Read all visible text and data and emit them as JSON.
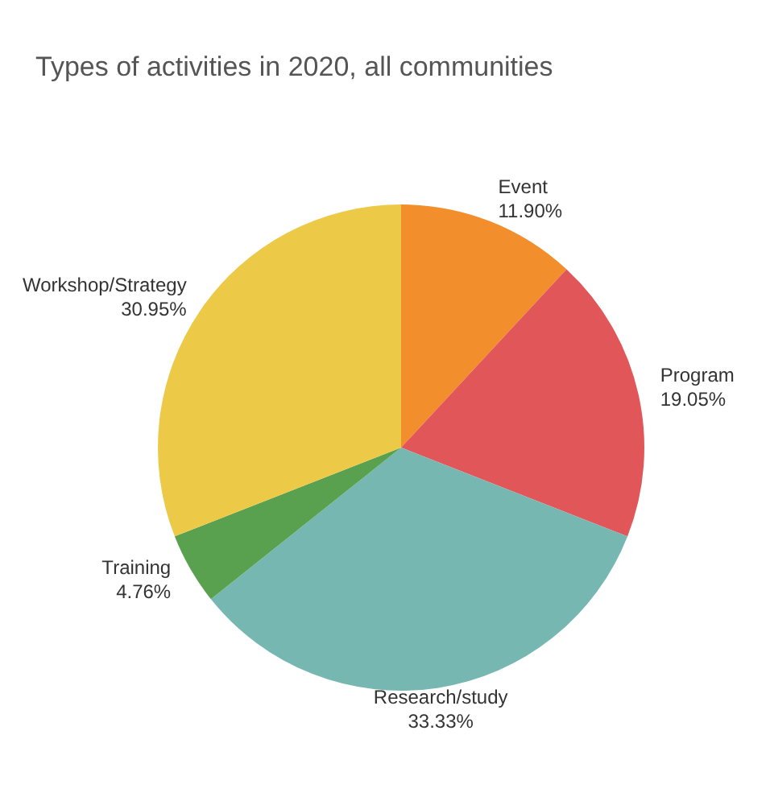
{
  "chart_data": {
    "type": "pie",
    "title": "Types of activities in 2020, all communities",
    "categories": [
      "Event",
      "Program",
      "Research/study",
      "Training",
      "Workshop/Strategy"
    ],
    "values": [
      11.9,
      19.05,
      33.33,
      4.76,
      30.95
    ],
    "value_labels": [
      "11.90%",
      "19.05%",
      "33.33%",
      "4.76%",
      "30.95%"
    ],
    "colors": [
      "#f28e2b",
      "#e15759",
      "#76b7b2",
      "#59a14f",
      "#edc948"
    ]
  }
}
